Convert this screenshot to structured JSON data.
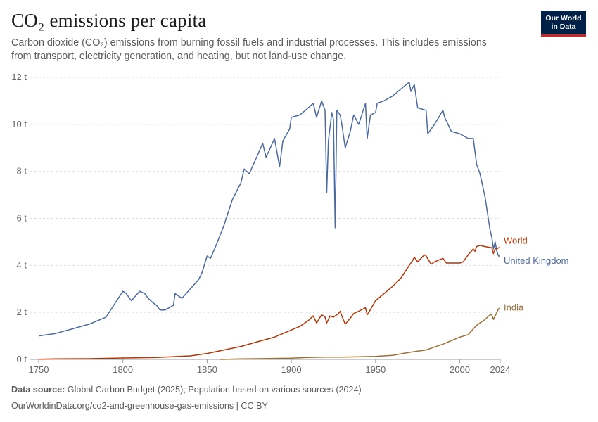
{
  "header": {
    "title": "CO₂ emissions per capita",
    "subtitle": "Carbon dioxide (CO₂) emissions from burning fossil fuels and industrial processes. This includes emissions from transport, electricity generation, and heating, but not land-use change."
  },
  "logo": {
    "line1": "Our World",
    "line2": "in Data"
  },
  "footer": {
    "source_label": "Data source:",
    "source_text": " Global Carbon Budget (2025); Population based on various sources (2024)",
    "url_license": "OurWorldinData.org/co2-and-greenhouse-gas-emissions | CC BY"
  },
  "chart_data": {
    "type": "line",
    "xlim": [
      1745,
      2024
    ],
    "ylim": [
      0,
      12
    ],
    "grid": "horizontal dashed",
    "x_ticks": [
      {
        "value": 1750,
        "label": "1750"
      },
      {
        "value": 1800,
        "label": "1800"
      },
      {
        "value": 1850,
        "label": "1850"
      },
      {
        "value": 1900,
        "label": "1900"
      },
      {
        "value": 1950,
        "label": "1950"
      },
      {
        "value": 2000,
        "label": "2000"
      },
      {
        "value": 2024,
        "label": "2024"
      }
    ],
    "y_ticks": [
      {
        "value": 0,
        "label": "0 t"
      },
      {
        "value": 2,
        "label": "2 t"
      },
      {
        "value": 4,
        "label": "4 t"
      },
      {
        "value": 6,
        "label": "6 t"
      },
      {
        "value": 8,
        "label": "8 t"
      },
      {
        "value": 10,
        "label": "10 t"
      },
      {
        "value": 12,
        "label": "12 t"
      }
    ],
    "series": [
      {
        "name": "United Kingdom",
        "color": "#4c6a9c",
        "x": [
          1750,
          1760,
          1770,
          1780,
          1790,
          1800,
          1802,
          1805,
          1810,
          1813,
          1815,
          1818,
          1820,
          1822,
          1825,
          1830,
          1831,
          1835,
          1840,
          1845,
          1847,
          1850,
          1852,
          1855,
          1860,
          1865,
          1870,
          1872,
          1875,
          1880,
          1883,
          1885,
          1890,
          1893,
          1895,
          1899,
          1900,
          1905,
          1910,
          1913,
          1915,
          1918,
          1920,
          1921,
          1922,
          1924,
          1925,
          1926,
          1927,
          1929,
          1930,
          1932,
          1935,
          1937,
          1940,
          1944,
          1945,
          1947,
          1950,
          1951,
          1955,
          1960,
          1965,
          1970,
          1971,
          1973,
          1975,
          1980,
          1981,
          1985,
          1990,
          1991,
          1995,
          2000,
          2005,
          2008,
          2010,
          2012,
          2015,
          2018,
          2019,
          2020,
          2021,
          2022,
          2023,
          2024
        ],
        "y": [
          1.0,
          1.1,
          1.3,
          1.5,
          1.8,
          2.9,
          2.8,
          2.5,
          2.9,
          2.8,
          2.6,
          2.4,
          2.3,
          2.1,
          2.1,
          2.3,
          2.8,
          2.6,
          3.0,
          3.4,
          3.7,
          4.4,
          4.3,
          4.8,
          5.7,
          6.8,
          7.5,
          8.1,
          7.9,
          8.7,
          9.2,
          8.6,
          9.4,
          8.2,
          9.3,
          9.8,
          10.3,
          10.4,
          10.7,
          10.9,
          10.3,
          11.0,
          10.6,
          7.1,
          9.3,
          10.5,
          10.2,
          5.6,
          10.6,
          10.4,
          10.0,
          9.0,
          9.7,
          10.4,
          10.0,
          10.9,
          9.4,
          10.4,
          10.5,
          10.9,
          11.0,
          11.2,
          11.5,
          11.8,
          11.4,
          11.7,
          10.7,
          10.6,
          9.6,
          10.0,
          10.6,
          10.3,
          9.7,
          9.6,
          9.4,
          9.4,
          8.3,
          7.9,
          6.9,
          5.5,
          5.2,
          4.7,
          5.0,
          4.6,
          4.4,
          4.4
        ]
      },
      {
        "name": "World",
        "color": "#b13507",
        "x": [
          1750,
          1760,
          1780,
          1800,
          1820,
          1840,
          1850,
          1860,
          1870,
          1880,
          1890,
          1900,
          1905,
          1910,
          1913,
          1915,
          1918,
          1920,
          1921,
          1923,
          1925,
          1928,
          1929,
          1930,
          1932,
          1935,
          1937,
          1940,
          1944,
          1945,
          1946,
          1950,
          1955,
          1960,
          1965,
          1970,
          1972,
          1973,
          1975,
          1979,
          1980,
          1983,
          1985,
          1990,
          1992,
          1995,
          2000,
          2002,
          2005,
          2008,
          2009,
          2010,
          2012,
          2015,
          2019,
          2020,
          2021,
          2022,
          2023,
          2024
        ],
        "y": [
          0.01,
          0.02,
          0.03,
          0.06,
          0.08,
          0.15,
          0.25,
          0.4,
          0.55,
          0.75,
          0.95,
          1.25,
          1.4,
          1.65,
          1.85,
          1.55,
          1.9,
          1.8,
          1.55,
          1.85,
          1.8,
          1.95,
          2.05,
          1.85,
          1.5,
          1.75,
          1.95,
          2.05,
          2.2,
          1.9,
          2.0,
          2.5,
          2.8,
          3.1,
          3.45,
          4.0,
          4.2,
          4.35,
          4.15,
          4.45,
          4.4,
          4.05,
          4.15,
          4.3,
          4.1,
          4.1,
          4.1,
          4.15,
          4.45,
          4.7,
          4.6,
          4.8,
          4.85,
          4.8,
          4.75,
          4.5,
          4.7,
          4.7,
          4.75,
          4.75
        ]
      },
      {
        "name": "India",
        "color": "#9a6f37",
        "x": [
          1858,
          1870,
          1880,
          1900,
          1910,
          1920,
          1930,
          1940,
          1950,
          1960,
          1970,
          1980,
          1990,
          1995,
          2000,
          2005,
          2008,
          2010,
          2013,
          2015,
          2018,
          2019,
          2020,
          2021,
          2022,
          2023,
          2024
        ],
        "y": [
          0.0,
          0.02,
          0.03,
          0.05,
          0.08,
          0.1,
          0.1,
          0.11,
          0.13,
          0.17,
          0.3,
          0.4,
          0.65,
          0.8,
          0.95,
          1.05,
          1.3,
          1.45,
          1.6,
          1.7,
          1.9,
          1.9,
          1.7,
          1.85,
          2.0,
          2.15,
          2.2
        ]
      }
    ]
  }
}
